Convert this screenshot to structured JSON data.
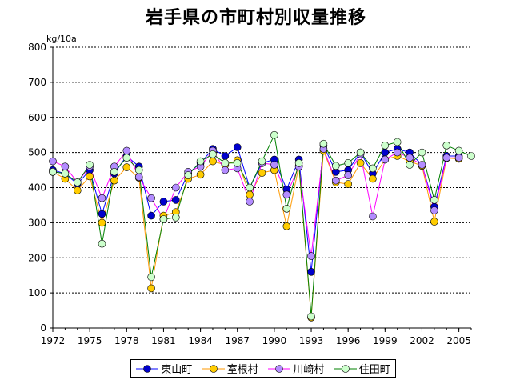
{
  "chart_data": {
    "type": "line",
    "title": "岩手県の市町村別収量推移",
    "ylabel": "kg/10a",
    "xlabel": "",
    "ylim": [
      0,
      800
    ],
    "xlim": [
      1972,
      2006
    ],
    "grid": true,
    "legend_position": "bottom",
    "x_ticks": [
      1972,
      1975,
      1978,
      1981,
      1984,
      1987,
      1990,
      1993,
      1996,
      1999,
      2002,
      2005
    ],
    "y_ticks": [
      0,
      100,
      200,
      300,
      400,
      500,
      600,
      700,
      800
    ],
    "x": [
      1972,
      1973,
      1974,
      1975,
      1976,
      1977,
      1978,
      1979,
      1980,
      1981,
      1982,
      1983,
      1984,
      1985,
      1986,
      1987,
      1988,
      1989,
      1990,
      1991,
      1992,
      1993,
      1994,
      1995,
      1996,
      1997,
      1998,
      1999,
      2000,
      2001,
      2002,
      2003,
      2004,
      2005,
      2006
    ],
    "series": [
      {
        "name": "東山町",
        "line_color": "#0000ff",
        "marker_color": "#0000cc",
        "values": [
          450,
          440,
          410,
          450,
          325,
          440,
          490,
          460,
          320,
          360,
          365,
          440,
          470,
          510,
          490,
          515,
          400,
          470,
          480,
          395,
          480,
          160,
          520,
          445,
          450,
          500,
          440,
          500,
          510,
          500,
          465,
          345,
          490,
          490,
          null
        ]
      },
      {
        "name": "室根村",
        "line_color": "#ff9900",
        "marker_color": "#ffcc00",
        "values": [
          445,
          425,
          392,
          432,
          300,
          420,
          458,
          428,
          113,
          320,
          330,
          425,
          437,
          475,
          465,
          478,
          380,
          442,
          450,
          290,
          462,
          30,
          505,
          415,
          410,
          470,
          425,
          480,
          490,
          475,
          462,
          303,
          484,
          482,
          null
        ]
      },
      {
        "name": "川崎村",
        "line_color": "#ff00ff",
        "marker_color": "#b38cff",
        "values": [
          475,
          460,
          415,
          460,
          370,
          460,
          505,
          430,
          370,
          310,
          400,
          445,
          460,
          505,
          450,
          455,
          360,
          470,
          465,
          380,
          460,
          205,
          510,
          420,
          435,
          495,
          318,
          480,
          500,
          485,
          465,
          335,
          485,
          485,
          null
        ]
      },
      {
        "name": "住田町",
        "line_color": "#008000",
        "marker_color": "#ccffcc",
        "values": [
          445,
          440,
          415,
          465,
          240,
          445,
          485,
          450,
          145,
          310,
          315,
          435,
          475,
          495,
          470,
          470,
          400,
          475,
          550,
          340,
          470,
          33,
          525,
          462,
          470,
          500,
          455,
          520,
          530,
          465,
          500,
          365,
          520,
          505,
          490
        ]
      }
    ]
  }
}
